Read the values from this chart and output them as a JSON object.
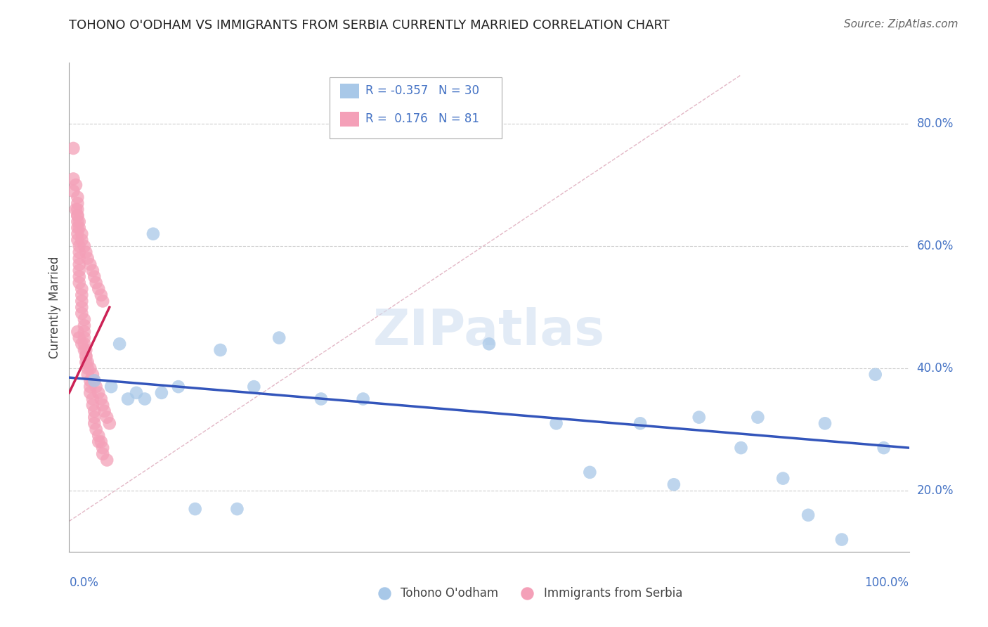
{
  "title": "TOHONO O'ODHAM VS IMMIGRANTS FROM SERBIA CURRENTLY MARRIED CORRELATION CHART",
  "source": "Source: ZipAtlas.com",
  "ylabel": "Currently Married",
  "xlim": [
    0.0,
    1.0
  ],
  "ylim": [
    0.1,
    0.9
  ],
  "ytick_labels": [
    "20.0%",
    "40.0%",
    "60.0%",
    "80.0%"
  ],
  "ytick_values": [
    0.2,
    0.4,
    0.6,
    0.8
  ],
  "legend_blue_label": "Tohono O'odham",
  "legend_pink_label": "Immigrants from Serbia",
  "blue_color": "#a8c8e8",
  "pink_color": "#f4a0b8",
  "trendline_blue_color": "#3355bb",
  "trendline_pink_color": "#cc2255",
  "diagonal_color": "#e0b0c0",
  "blue_scatter_x": [
    0.03,
    0.05,
    0.06,
    0.07,
    0.08,
    0.09,
    0.1,
    0.11,
    0.13,
    0.15,
    0.18,
    0.2,
    0.22,
    0.25,
    0.3,
    0.35,
    0.5,
    0.58,
    0.62,
    0.68,
    0.72,
    0.75,
    0.8,
    0.82,
    0.85,
    0.88,
    0.9,
    0.92,
    0.96,
    0.97
  ],
  "blue_scatter_y": [
    0.38,
    0.37,
    0.44,
    0.35,
    0.36,
    0.35,
    0.62,
    0.36,
    0.37,
    0.17,
    0.43,
    0.17,
    0.37,
    0.45,
    0.35,
    0.35,
    0.44,
    0.31,
    0.23,
    0.31,
    0.21,
    0.32,
    0.27,
    0.32,
    0.22,
    0.16,
    0.31,
    0.12,
    0.39,
    0.27
  ],
  "pink_scatter_x": [
    0.005,
    0.005,
    0.008,
    0.01,
    0.01,
    0.01,
    0.01,
    0.01,
    0.01,
    0.01,
    0.01,
    0.012,
    0.012,
    0.012,
    0.012,
    0.012,
    0.012,
    0.012,
    0.015,
    0.015,
    0.015,
    0.015,
    0.015,
    0.018,
    0.018,
    0.018,
    0.018,
    0.018,
    0.02,
    0.02,
    0.02,
    0.022,
    0.022,
    0.025,
    0.025,
    0.025,
    0.028,
    0.028,
    0.03,
    0.03,
    0.03,
    0.032,
    0.035,
    0.035,
    0.038,
    0.04,
    0.04,
    0.045,
    0.005,
    0.008,
    0.01,
    0.012,
    0.012,
    0.015,
    0.015,
    0.018,
    0.02,
    0.022,
    0.025,
    0.028,
    0.03,
    0.032,
    0.035,
    0.038,
    0.04,
    0.01,
    0.012,
    0.015,
    0.018,
    0.02,
    0.022,
    0.025,
    0.028,
    0.03,
    0.032,
    0.035,
    0.038,
    0.04,
    0.042,
    0.045,
    0.048
  ],
  "pink_scatter_y": [
    0.76,
    0.71,
    0.7,
    0.68,
    0.67,
    0.66,
    0.65,
    0.64,
    0.63,
    0.62,
    0.61,
    0.6,
    0.59,
    0.58,
    0.57,
    0.56,
    0.55,
    0.54,
    0.53,
    0.52,
    0.51,
    0.5,
    0.49,
    0.48,
    0.47,
    0.46,
    0.45,
    0.44,
    0.43,
    0.42,
    0.41,
    0.4,
    0.39,
    0.38,
    0.37,
    0.36,
    0.35,
    0.34,
    0.33,
    0.32,
    0.31,
    0.3,
    0.29,
    0.28,
    0.28,
    0.27,
    0.26,
    0.25,
    0.69,
    0.66,
    0.65,
    0.64,
    0.63,
    0.62,
    0.61,
    0.6,
    0.59,
    0.58,
    0.57,
    0.56,
    0.55,
    0.54,
    0.53,
    0.52,
    0.51,
    0.46,
    0.45,
    0.44,
    0.43,
    0.42,
    0.41,
    0.4,
    0.39,
    0.38,
    0.37,
    0.36,
    0.35,
    0.34,
    0.33,
    0.32,
    0.31
  ],
  "blue_trend_x": [
    0.0,
    1.0
  ],
  "blue_trend_y": [
    0.385,
    0.27
  ],
  "pink_trend_x": [
    0.0,
    0.048
  ],
  "pink_trend_y": [
    0.36,
    0.5
  ],
  "background_color": "#ffffff",
  "grid_color": "#cccccc",
  "watermark_text": "ZIPatlas",
  "watermark_color": "#d0dff0"
}
